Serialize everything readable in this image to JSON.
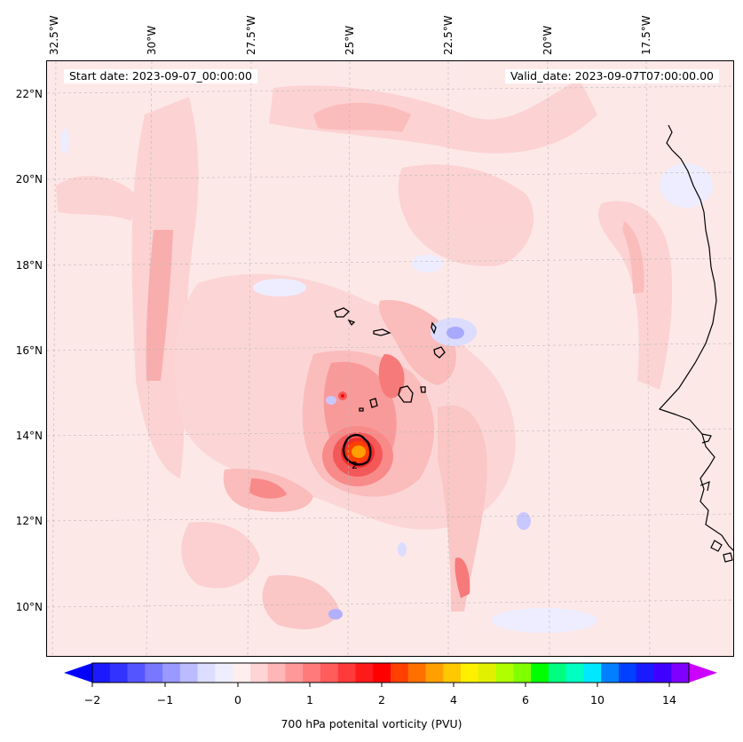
{
  "header": {
    "start_date": "Start date: 2023-09-07_00:00:00",
    "valid_date": "Valid_date: 2023-09-07T07:00:00.00"
  },
  "map": {
    "lon_labels": [
      "32.5°W",
      "30°W",
      "27.5°W",
      "25°W",
      "22.5°W",
      "20°W",
      "17.5°W"
    ],
    "lat_labels": [
      "22°N",
      "20°N",
      "18°N",
      "16°N",
      "14°N",
      "12°N",
      "10°N"
    ],
    "contour_label": "2",
    "background_color": "#fde8e8"
  },
  "colorbar": {
    "title": "700 hPa potenital vorticity (PVU)",
    "tick_labels": [
      "−2",
      "−1",
      "0",
      "1",
      "2",
      "4",
      "6",
      "10",
      "14"
    ],
    "colors": [
      "#1a1aff",
      "#3333ff",
      "#5555ff",
      "#7777ff",
      "#9999ff",
      "#bbbbff",
      "#ddddff",
      "#eeeeff",
      "#ffeeee",
      "#ffd4d4",
      "#ffb6b6",
      "#ff9898",
      "#ff7a7a",
      "#ff5c5c",
      "#ff3a3a",
      "#ff1a1a",
      "#ff0000",
      "#ff4000",
      "#ff7000",
      "#ffa000",
      "#ffc800",
      "#fff000",
      "#e0f000",
      "#b0ff00",
      "#80ff00",
      "#00ff00",
      "#00ff80",
      "#00ffc0",
      "#00e8ff",
      "#0080ff",
      "#0040ff",
      "#1a1aff",
      "#4000ff",
      "#8000ff"
    ],
    "min_color": "#0000ff",
    "max_color": "#cc00ff"
  }
}
